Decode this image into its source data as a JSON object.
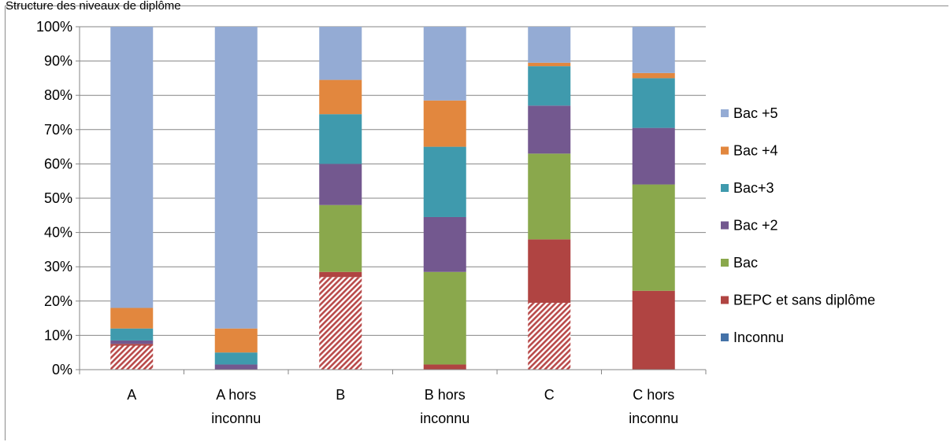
{
  "header_text": "Structure des niveaux de diplôme",
  "chart_data": {
    "type": "bar",
    "stacked": true,
    "percent": true,
    "categories": [
      "A",
      "A hors inconnu",
      "B",
      "B hors inconnu",
      "C",
      "C hors inconnu"
    ],
    "category_lines": [
      [
        "A"
      ],
      [
        "A hors",
        "inconnu"
      ],
      [
        "B"
      ],
      [
        "B hors",
        "inconnu"
      ],
      [
        "C"
      ],
      [
        "C hors",
        "inconnu"
      ]
    ],
    "ylim": [
      0,
      100
    ],
    "yticks": [
      0,
      10,
      20,
      30,
      40,
      50,
      60,
      70,
      80,
      90,
      100
    ],
    "ytick_labels": [
      "0%",
      "10%",
      "20%",
      "30%",
      "40%",
      "50%",
      "60%",
      "70%",
      "80%",
      "90%",
      "100%"
    ],
    "grid": true,
    "legend_position": "right",
    "series": [
      {
        "name": "Inconnu",
        "color": "#4472a8",
        "hatched": true,
        "hatch_color": "#b94a4a",
        "values": [
          7,
          0,
          27,
          0,
          19.5,
          0
        ]
      },
      {
        "name": "BEPC et sans diplôme",
        "color": "#b04442",
        "values": [
          0.5,
          0,
          1.5,
          1.5,
          18.5,
          23
        ]
      },
      {
        "name": "Bac",
        "color": "#8aa84c",
        "values": [
          0,
          0,
          19.5,
          27,
          25,
          31
        ]
      },
      {
        "name": "Bac +2",
        "color": "#73588f",
        "values": [
          1,
          1.5,
          12,
          16,
          14,
          16.5
        ]
      },
      {
        "name": "Bac+3",
        "color": "#3f9aad",
        "values": [
          3.5,
          3.5,
          14.5,
          20.5,
          11.5,
          14.5
        ]
      },
      {
        "name": "Bac +4",
        "color": "#e2873e",
        "values": [
          6,
          7,
          10,
          13.5,
          1,
          1.5
        ]
      },
      {
        "name": "Bac +5",
        "color": "#94abd4",
        "values": [
          82,
          88,
          15.5,
          21.5,
          10.5,
          13.5
        ]
      }
    ]
  }
}
